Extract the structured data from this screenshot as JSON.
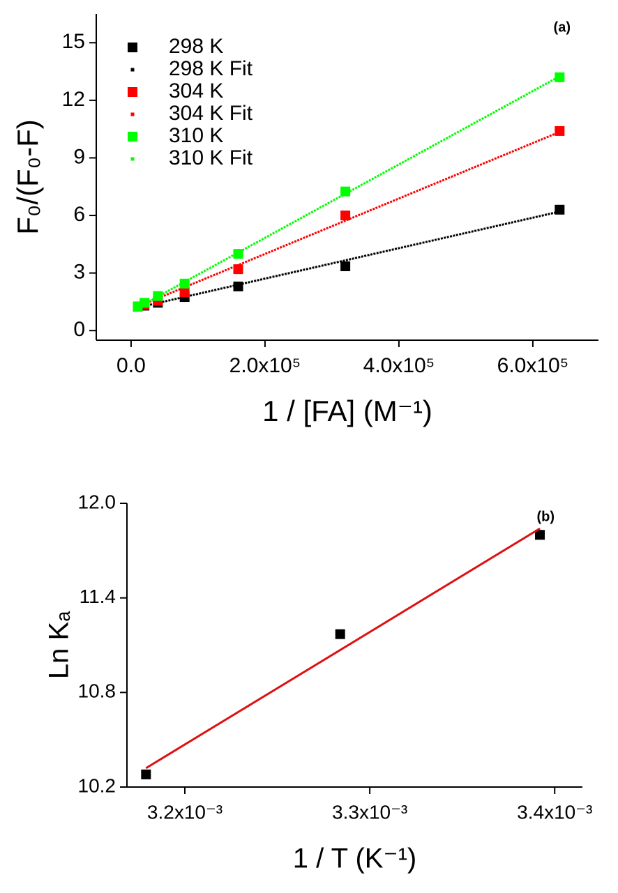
{
  "chart_data": [
    {
      "type": "scatter",
      "annotation": "(a)",
      "x_label": "1 / [FA] (M⁻¹)",
      "y_label": "F₀/(F₀-F)",
      "xlim": [
        -52000,
        698000
      ],
      "xticks": [
        {
          "value": 0,
          "label": "0.0"
        },
        {
          "value": 200000,
          "label": "2.0x10⁵"
        },
        {
          "value": 400000,
          "label": "4.0x10⁵"
        },
        {
          "value": 600000,
          "label": "6.0x10⁵"
        }
      ],
      "ylim": [
        -0.5,
        16.5
      ],
      "yticks": [
        0,
        3,
        6,
        9,
        12,
        15
      ],
      "legend": "top-left",
      "series": [
        {
          "name": "298 K",
          "color": "#000000",
          "style": "marker",
          "x": [
            10000,
            20000,
            40000,
            80000,
            160000,
            320000,
            640000
          ],
          "values": [
            1.25,
            1.3,
            1.45,
            1.75,
            2.3,
            3.35,
            6.3
          ]
        },
        {
          "name": "298 K Fit",
          "color": "#000000",
          "style": "dotted",
          "x": [
            10000,
            640000
          ],
          "values": [
            1.2,
            6.2
          ]
        },
        {
          "name": "304 K",
          "color": "#ff0000",
          "style": "marker",
          "x": [
            10000,
            20000,
            40000,
            80000,
            160000,
            320000,
            640000
          ],
          "values": [
            1.25,
            1.35,
            1.55,
            2.0,
            3.2,
            6.0,
            10.4
          ]
        },
        {
          "name": "304 K Fit",
          "color": "#ff0000",
          "style": "dotted",
          "x": [
            10000,
            640000
          ],
          "values": [
            1.25,
            10.35
          ]
        },
        {
          "name": "310 K",
          "color": "#00ff00",
          "style": "marker",
          "x": [
            10000,
            20000,
            40000,
            80000,
            160000,
            320000,
            640000
          ],
          "values": [
            1.25,
            1.45,
            1.8,
            2.45,
            4.0,
            7.25,
            13.2
          ]
        },
        {
          "name": "310 K Fit",
          "color": "#00ff00",
          "style": "dotted",
          "x": [
            10000,
            640000
          ],
          "values": [
            1.2,
            13.25
          ]
        }
      ]
    },
    {
      "type": "scatter",
      "annotation": "(b)",
      "x_label": "1 / T (K⁻¹)",
      "y_label": "Ln Kₐ",
      "xlim": [
        0.0031687,
        0.003415
      ],
      "xticks": [
        {
          "value": 0.0032,
          "label": "3.2x10⁻³"
        },
        {
          "value": 0.0033,
          "label": "3.3x10⁻³"
        },
        {
          "value": 0.0034,
          "label": "3.4x10⁻³"
        }
      ],
      "ylim": [
        10.2,
        12.0
      ],
      "yticks": [
        10.2,
        10.8,
        11.4,
        {
          "value": 12,
          "label": "12.0"
        }
      ],
      "series": [
        {
          "color": "#000000",
          "style": "marker",
          "x": [
            0.003179,
            0.003284,
            0.003392
          ],
          "values": [
            10.28,
            11.17,
            11.8
          ]
        },
        {
          "color": "#dd1111",
          "style": "solid",
          "x": [
            0.003179,
            0.003392
          ],
          "values": [
            10.32,
            11.84
          ]
        }
      ]
    }
  ]
}
